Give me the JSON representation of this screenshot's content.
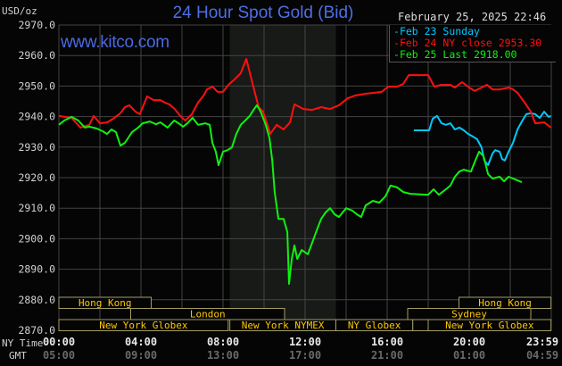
{
  "chart_data": {
    "type": "line",
    "title": "24 Hour Spot Gold (Bid)",
    "watermark": "www.kitco.com",
    "timestamp": "February 25, 2025 22:46",
    "ylabel": "USD/oz",
    "ylim": [
      2870,
      2970
    ],
    "y_ticks": [
      "2970.0",
      "2960.0",
      "2950.0",
      "2940.0",
      "2930.0",
      "2920.0",
      "2910.0",
      "2900.0",
      "2890.0",
      "2880.0",
      "2870.0"
    ],
    "x_row_labels": [
      "NY Time",
      "GMT"
    ],
    "x_ticks_ny": [
      "00:00",
      "04:00",
      "08:00",
      "12:00",
      "16:00",
      "20:00",
      "23:59"
    ],
    "x_ticks_gmt": [
      "05:00",
      "09:00",
      "13:00",
      "17:00",
      "21:00",
      "01:00",
      "04:59"
    ],
    "grid": true,
    "legend_position": "top-right",
    "shaded_period": [
      "08:20",
      "13:30"
    ],
    "series": [
      {
        "name": "Feb 23 Sunday",
        "label": "Feb 23 Sunday",
        "color": "#00c8ff",
        "points": [
          [
            "17:18",
            2935.5
          ],
          [
            "18:03",
            2935.5
          ],
          [
            "18:13",
            2939.3
          ],
          [
            "18:26",
            2940.2
          ],
          [
            "18:39",
            2937.8
          ],
          [
            "18:52",
            2937.3
          ],
          [
            "19:05",
            2937.8
          ],
          [
            "19:18",
            2935.8
          ],
          [
            "19:31",
            2936.4
          ],
          [
            "19:44",
            2935.5
          ],
          [
            "19:57",
            2934.3
          ],
          [
            "20:10",
            2933.5
          ],
          [
            "20:23",
            2932.6
          ],
          [
            "20:36",
            2929.9
          ],
          [
            "20:44",
            2925.6
          ],
          [
            "20:55",
            2924.1
          ],
          [
            "21:08",
            2927.9
          ],
          [
            "21:16",
            2929.0
          ],
          [
            "21:29",
            2928.5
          ],
          [
            "21:36",
            2926.1
          ],
          [
            "21:44",
            2925.6
          ],
          [
            "21:55",
            2928.5
          ],
          [
            "22:08",
            2931.4
          ],
          [
            "22:21",
            2935.8
          ],
          [
            "22:34",
            2938.4
          ],
          [
            "22:47",
            2940.8
          ],
          [
            "23:00",
            2941.1
          ],
          [
            "23:13",
            2940.8
          ],
          [
            "23:26",
            2939.6
          ],
          [
            "23:39",
            2941.6
          ],
          [
            "23:52",
            2939.9
          ],
          [
            "23:59",
            2940.2
          ]
        ]
      },
      {
        "name": "Feb 24 NY close",
        "label": "Feb 24 NY close 2953.30",
        "color": "#ff1010",
        "points": [
          [
            "00:00",
            2940.2
          ],
          [
            "00:37",
            2939.6
          ],
          [
            "01:03",
            2936.4
          ],
          [
            "01:29",
            2937.3
          ],
          [
            "01:42",
            2940.2
          ],
          [
            "02:00",
            2937.8
          ],
          [
            "02:21",
            2938.1
          ],
          [
            "02:39",
            2939.3
          ],
          [
            "03:00",
            2941.1
          ],
          [
            "03:13",
            2943.1
          ],
          [
            "03:26",
            2943.7
          ],
          [
            "03:44",
            2941.6
          ],
          [
            "03:57",
            2940.8
          ],
          [
            "04:18",
            2946.6
          ],
          [
            "04:37",
            2945.4
          ],
          [
            "04:57",
            2945.4
          ],
          [
            "05:10",
            2944.6
          ],
          [
            "05:23",
            2944.0
          ],
          [
            "05:39",
            2942.5
          ],
          [
            "05:55",
            2940.2
          ],
          [
            "06:10",
            2938.7
          ],
          [
            "06:29",
            2940.8
          ],
          [
            "06:47",
            2944.6
          ],
          [
            "07:03",
            2946.9
          ],
          [
            "07:13",
            2948.9
          ],
          [
            "07:29",
            2949.8
          ],
          [
            "07:44",
            2948.1
          ],
          [
            "08:00",
            2948.1
          ],
          [
            "08:16",
            2950.4
          ],
          [
            "08:31",
            2951.9
          ],
          [
            "08:52",
            2954.2
          ],
          [
            "09:08",
            2958.9
          ],
          [
            "09:24",
            2951.9
          ],
          [
            "09:34",
            2947.5
          ],
          [
            "09:44",
            2943.1
          ],
          [
            "09:57",
            2941.6
          ],
          [
            "10:10",
            2937.3
          ],
          [
            "10:18",
            2934.3
          ],
          [
            "10:37",
            2937.3
          ],
          [
            "10:57",
            2935.8
          ],
          [
            "11:16",
            2938.1
          ],
          [
            "11:29",
            2944.0
          ],
          [
            "11:55",
            2942.5
          ],
          [
            "12:21",
            2942.2
          ],
          [
            "12:47",
            2943.1
          ],
          [
            "13:13",
            2942.5
          ],
          [
            "13:39",
            2943.7
          ],
          [
            "14:05",
            2946.0
          ],
          [
            "14:26",
            2946.9
          ],
          [
            "14:57",
            2947.5
          ],
          [
            "15:23",
            2947.8
          ],
          [
            "15:44",
            2948.1
          ],
          [
            "16:03",
            2949.8
          ],
          [
            "16:29",
            2949.8
          ],
          [
            "16:47",
            2950.7
          ],
          [
            "17:03",
            2953.6
          ],
          [
            "17:34",
            2953.6
          ],
          [
            "18:00",
            2953.6
          ],
          [
            "18:18",
            2949.8
          ],
          [
            "18:39",
            2950.4
          ],
          [
            "19:05",
            2950.4
          ],
          [
            "19:18",
            2949.5
          ],
          [
            "19:39",
            2951.3
          ],
          [
            "20:00",
            2949.5
          ],
          [
            "20:16",
            2948.4
          ],
          [
            "20:36",
            2949.5
          ],
          [
            "20:52",
            2950.4
          ],
          [
            "21:08",
            2948.9
          ],
          [
            "21:29",
            2948.9
          ],
          [
            "21:55",
            2949.5
          ],
          [
            "22:08",
            2948.9
          ],
          [
            "22:21",
            2947.8
          ],
          [
            "22:42",
            2944.6
          ],
          [
            "23:00",
            2941.6
          ],
          [
            "23:13",
            2937.8
          ],
          [
            "23:39",
            2938.1
          ],
          [
            "23:59",
            2936.4
          ]
        ]
      },
      {
        "name": "Feb 25 Last",
        "label": "Feb 25 Last 2918.00",
        "color": "#10f010",
        "points": [
          [
            "00:00",
            2937.3
          ],
          [
            "00:16",
            2938.7
          ],
          [
            "00:37",
            2939.9
          ],
          [
            "00:57",
            2938.7
          ],
          [
            "01:16",
            2936.4
          ],
          [
            "01:29",
            2936.7
          ],
          [
            "01:50",
            2936.1
          ],
          [
            "02:08",
            2935.2
          ],
          [
            "02:21",
            2934.3
          ],
          [
            "02:34",
            2935.8
          ],
          [
            "02:47",
            2934.9
          ],
          [
            "03:00",
            2930.5
          ],
          [
            "03:13",
            2931.4
          ],
          [
            "03:34",
            2934.9
          ],
          [
            "03:52",
            2936.4
          ],
          [
            "04:05",
            2937.8
          ],
          [
            "04:26",
            2938.4
          ],
          [
            "04:44",
            2937.5
          ],
          [
            "04:57",
            2938.1
          ],
          [
            "05:18",
            2936.4
          ],
          [
            "05:37",
            2938.7
          ],
          [
            "05:50",
            2937.8
          ],
          [
            "06:03",
            2936.7
          ],
          [
            "06:16",
            2937.8
          ],
          [
            "06:31",
            2939.6
          ],
          [
            "06:47",
            2937.3
          ],
          [
            "07:08",
            2937.8
          ],
          [
            "07:21",
            2937.3
          ],
          [
            "07:29",
            2931.4
          ],
          [
            "07:39",
            2928.5
          ],
          [
            "07:47",
            2924.1
          ],
          [
            "08:00",
            2928.5
          ],
          [
            "08:13",
            2929.0
          ],
          [
            "08:26",
            2929.9
          ],
          [
            "08:39",
            2934.3
          ],
          [
            "08:52",
            2937.3
          ],
          [
            "09:05",
            2938.7
          ],
          [
            "09:18",
            2940.2
          ],
          [
            "09:31",
            2942.5
          ],
          [
            "09:39",
            2943.7
          ],
          [
            "09:50",
            2941.6
          ],
          [
            "10:05",
            2937.3
          ],
          [
            "10:16",
            2932.9
          ],
          [
            "10:24",
            2925.6
          ],
          [
            "10:31",
            2915.3
          ],
          [
            "10:42",
            2906.5
          ],
          [
            "10:57",
            2906.5
          ],
          [
            "11:08",
            2902.2
          ],
          [
            "11:13",
            2885.2
          ],
          [
            "11:21",
            2893.4
          ],
          [
            "11:29",
            2897.8
          ],
          [
            "11:37",
            2893.4
          ],
          [
            "11:50",
            2896.3
          ],
          [
            "12:08",
            2894.9
          ],
          [
            "12:21",
            2898.7
          ],
          [
            "12:34",
            2902.7
          ],
          [
            "12:47",
            2906.5
          ],
          [
            "13:00",
            2908.6
          ],
          [
            "13:13",
            2910.0
          ],
          [
            "13:26",
            2908.0
          ],
          [
            "13:39",
            2907.1
          ],
          [
            "14:00",
            2910.0
          ],
          [
            "14:18",
            2909.2
          ],
          [
            "14:31",
            2908.0
          ],
          [
            "14:44",
            2907.1
          ],
          [
            "14:57",
            2910.9
          ],
          [
            "15:18",
            2912.4
          ],
          [
            "15:37",
            2911.8
          ],
          [
            "15:55",
            2913.9
          ],
          [
            "16:10",
            2917.4
          ],
          [
            "16:29",
            2916.8
          ],
          [
            "16:47",
            2915.3
          ],
          [
            "17:08",
            2914.7
          ],
          [
            "18:00",
            2914.4
          ],
          [
            "18:16",
            2916.2
          ],
          [
            "18:31",
            2914.4
          ],
          [
            "18:52",
            2916.2
          ],
          [
            "19:05",
            2917.4
          ],
          [
            "19:18",
            2920.3
          ],
          [
            "19:31",
            2922.0
          ],
          [
            "19:44",
            2922.6
          ],
          [
            "20:05",
            2922.0
          ],
          [
            "20:18",
            2925.6
          ],
          [
            "20:29",
            2928.5
          ],
          [
            "20:42",
            2927.0
          ],
          [
            "20:55",
            2921.2
          ],
          [
            "21:08",
            2919.7
          ],
          [
            "21:29",
            2920.3
          ],
          [
            "21:42",
            2918.8
          ],
          [
            "21:55",
            2920.3
          ],
          [
            "22:08",
            2919.7
          ],
          [
            "22:21",
            2919.1
          ],
          [
            "22:34",
            2918.5
          ]
        ]
      }
    ],
    "sessions": [
      {
        "label": "Hong Kong",
        "row": 0,
        "start": "00:00",
        "end": "04:30"
      },
      {
        "label": "Hong Kong",
        "row": 0,
        "start": "19:30",
        "end": "23:59"
      },
      {
        "label": "London",
        "row": 1,
        "start": "03:30",
        "end": "11:00"
      },
      {
        "label": "Sydney",
        "row": 1,
        "start": "17:00",
        "end": "23:00"
      },
      {
        "label": "New York Globex",
        "row": 2,
        "start": "00:00",
        "end": "08:15"
      },
      {
        "label": "New York NYMEX",
        "row": 2,
        "start": "08:20",
        "end": "13:30"
      },
      {
        "label": "NY Globex",
        "row": 2,
        "start": "13:30",
        "end": "17:15"
      },
      {
        "label": "",
        "row": 2,
        "start": "17:15",
        "end": "18:00"
      },
      {
        "label": "New York Globex",
        "row": 2,
        "start": "18:00",
        "end": "23:59"
      }
    ]
  }
}
